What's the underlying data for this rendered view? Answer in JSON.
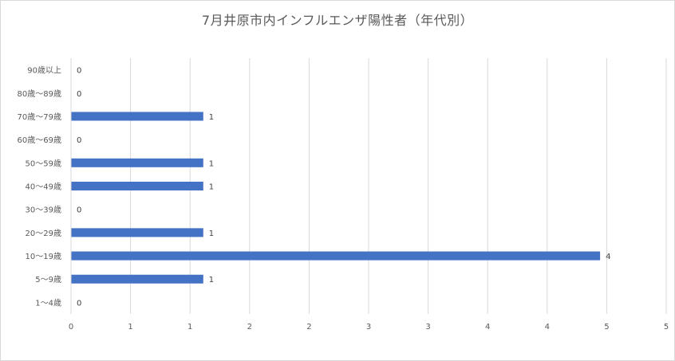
{
  "chart_data": {
    "type": "bar",
    "orientation": "horizontal",
    "title": "7月井原市内インフルエンザ陽性者（年代別）",
    "xlabel": "",
    "ylabel": "",
    "categories": [
      "90歳以上",
      "80歳～89歳",
      "70歳～79歳",
      "60歳～69歳",
      "50～59歳",
      "40～49歳",
      "30～39歳",
      "20～29歳",
      "10～19歳",
      "5～9歳",
      "1～4歳"
    ],
    "values": [
      0,
      0,
      1,
      0,
      1,
      1,
      0,
      1,
      4,
      1,
      0
    ],
    "data_labels": [
      "0",
      "0",
      "1",
      "0",
      "1",
      "1",
      "0",
      "1",
      "4",
      "1",
      "0"
    ],
    "xlim": [
      0,
      4.5
    ],
    "x_tick_labels": [
      "0",
      "1",
      "1",
      "2",
      "2",
      "3",
      "3",
      "4",
      "4",
      "5",
      "5"
    ],
    "grid": "vertical",
    "legend": "none",
    "bar_color": "#4472c4"
  }
}
